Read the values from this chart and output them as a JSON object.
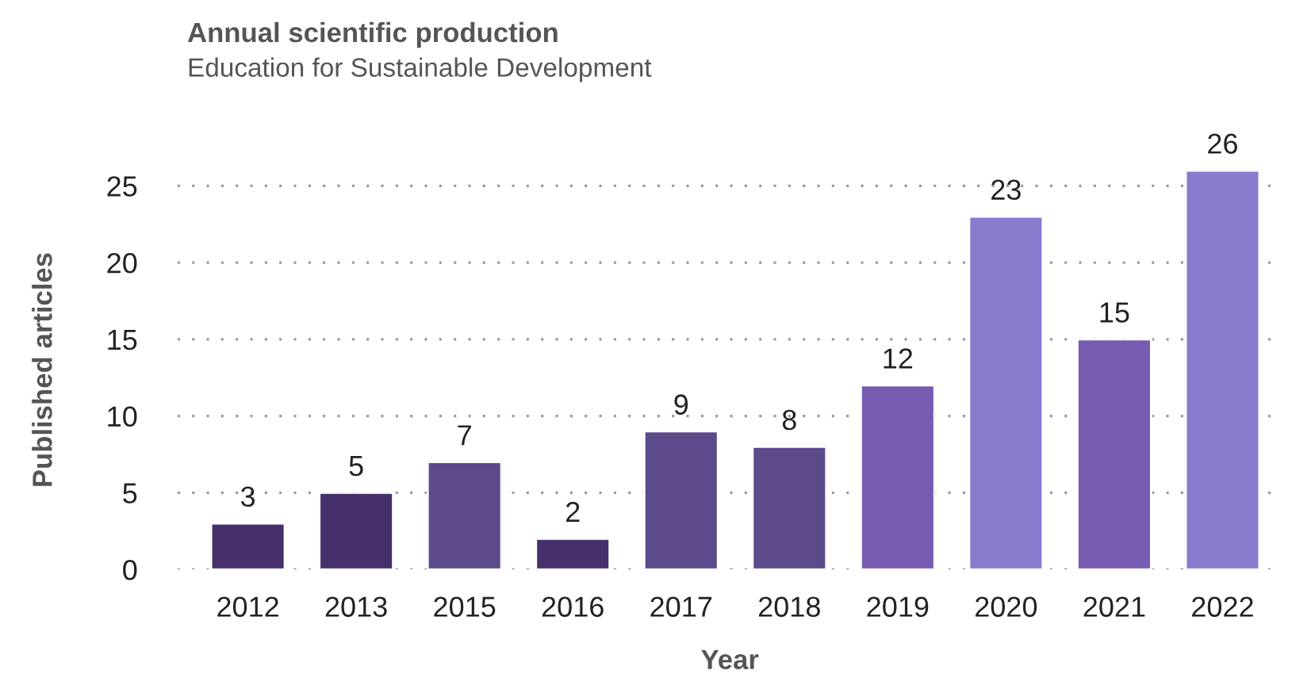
{
  "chart_data": {
    "type": "bar",
    "title": "Annual scientific production",
    "subtitle": "Education for Sustainable Development",
    "xlabel": "Year",
    "ylabel": "Published articles",
    "categories": [
      "2012",
      "2013",
      "2015",
      "2016",
      "2017",
      "2018",
      "2019",
      "2020",
      "2021",
      "2022"
    ],
    "values": [
      3,
      5,
      7,
      2,
      9,
      8,
      12,
      23,
      15,
      26
    ],
    "colors": [
      "#45306b",
      "#45306b",
      "#5d4a8a",
      "#45306b",
      "#5d4a8a",
      "#5d4a8a",
      "#765cb0",
      "#8a7bce",
      "#765cb0",
      "#8a7bce"
    ],
    "ylim": [
      0,
      26
    ],
    "yticks": [
      0,
      5,
      10,
      15,
      20,
      25
    ],
    "grid": "y",
    "data_labels": true
  }
}
